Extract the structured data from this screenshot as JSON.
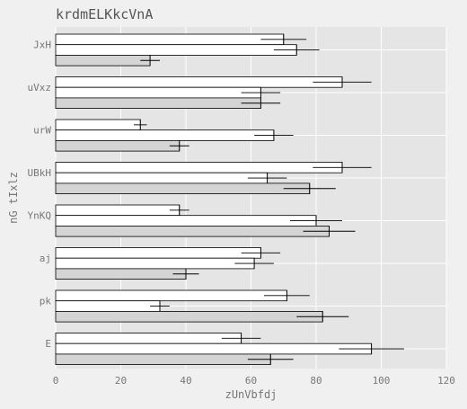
{
  "chart_data": {
    "type": "bar",
    "orientation": "horizontal",
    "title": "krdmELKkcVnA",
    "xlabel": "zUnVbfdj",
    "ylabel": "nG tIxlz",
    "categories": [
      "JxH",
      "uVxz",
      "urW",
      "UBkH",
      "YnKQ",
      "aj",
      "pk",
      "E"
    ],
    "series": [
      {
        "color": "#ffffff",
        "values": [
          70,
          88,
          26,
          88,
          38,
          63,
          71,
          57
        ],
        "errors": [
          7,
          9,
          2,
          9,
          3,
          6,
          7,
          6
        ]
      },
      {
        "color": "#ffffff",
        "values": [
          74,
          63,
          67,
          65,
          80,
          61,
          32,
          97
        ],
        "errors": [
          7,
          6,
          6,
          6,
          8,
          6,
          3,
          10
        ]
      },
      {
        "color": "#d4d4d4",
        "values": [
          29,
          63,
          38,
          78,
          84,
          40,
          82,
          66
        ],
        "errors": [
          3,
          6,
          3,
          8,
          8,
          4,
          8,
          7
        ]
      }
    ],
    "xlim": [
      0,
      120
    ],
    "xticks": [
      "0",
      "20",
      "40",
      "60",
      "80",
      "100",
      "120"
    ],
    "grid": true,
    "legend": "none",
    "plot_background": "#e5e5e5",
    "grid_color": "#ffffff"
  }
}
